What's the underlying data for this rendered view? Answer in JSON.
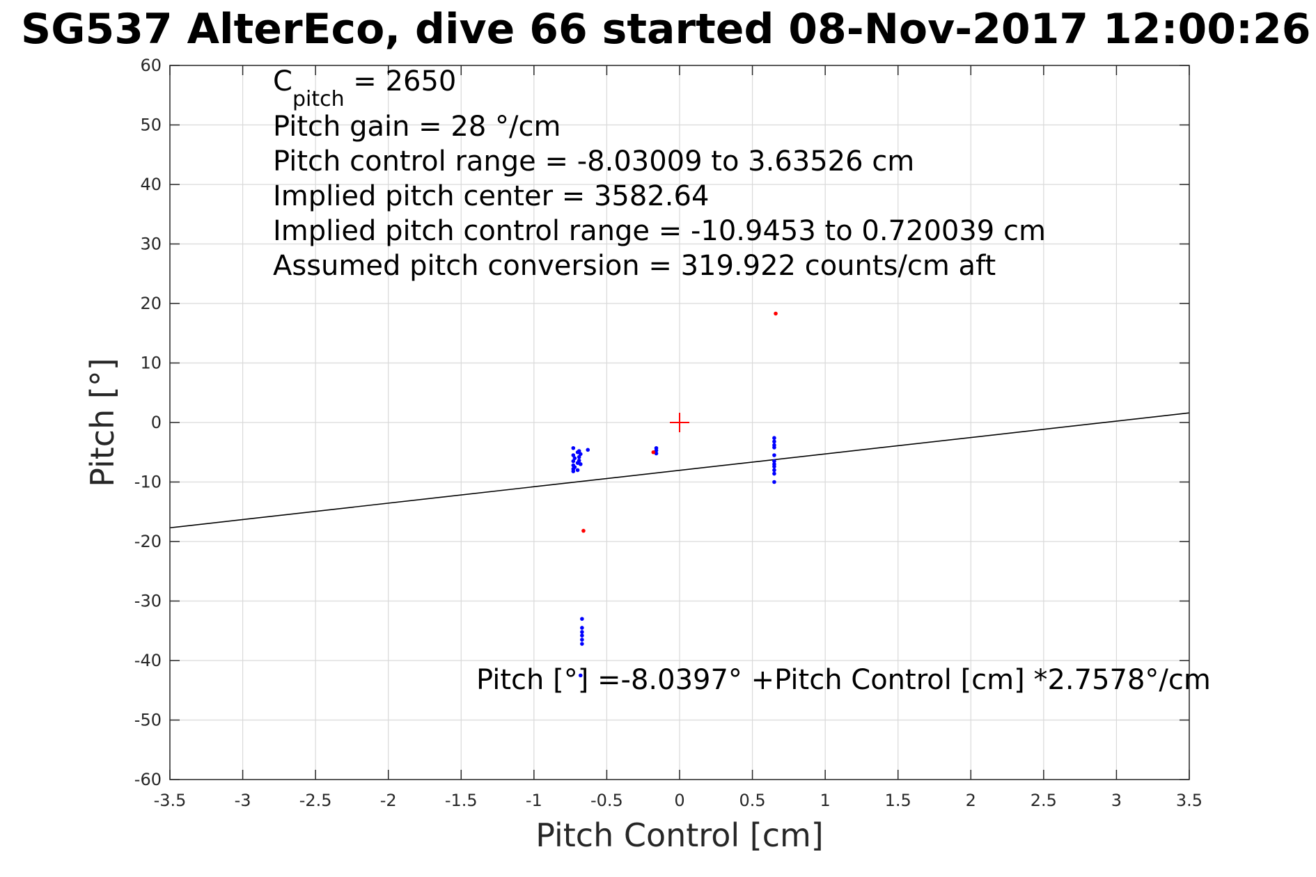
{
  "chart_data": {
    "type": "scatter",
    "title": "SG537 AlterEco, dive 66 started 08-Nov-2017 12:00:26",
    "xlabel": "Pitch Control [cm]",
    "ylabel": "Pitch [°]",
    "xlim": [
      -3.5,
      3.5
    ],
    "ylim": [
      -60,
      60
    ],
    "xticks": [
      -3.5,
      -3,
      -2.5,
      -2,
      -1.5,
      -1,
      -0.5,
      0,
      0.5,
      1,
      1.5,
      2,
      2.5,
      3,
      3.5
    ],
    "xtick_labels": [
      "-3.5",
      "-3",
      "-2.5",
      "-2",
      "-1.5",
      "-1",
      "-0.5",
      "0",
      "0.5",
      "1",
      "1.5",
      "2",
      "2.5",
      "3",
      "3.5"
    ],
    "yticks": [
      60,
      50,
      40,
      30,
      20,
      10,
      0,
      -10,
      -20,
      -30,
      -40,
      -50,
      -60
    ],
    "ytick_labels": [
      "60",
      "50",
      "40",
      "30",
      "20",
      "10",
      "0",
      "-10",
      "-20",
      "-30",
      "-40",
      "-50",
      "-60"
    ],
    "grid": true,
    "annotations": {
      "cpitch_base": "C",
      "cpitch_sub": "pitch",
      "cpitch_value": " = 2650",
      "lines": [
        "Pitch gain = 28 °/cm",
        "Pitch control range = -8.03009 to 3.63526 cm",
        "Implied pitch center = 3582.64",
        "Implied pitch control range = -10.9453 to 0.720039 cm",
        "Assumed pitch conversion = 319.922 counts/cm aft"
      ],
      "fit_equation": "Pitch [°] =-8.0397° +Pitch Control [cm] *2.7578°/cm"
    },
    "fit_line": {
      "intercept": -8.0397,
      "slope": 2.7578,
      "color": "#000000"
    },
    "center_marker": {
      "x": 0,
      "y": 0,
      "color": "#ff0000"
    },
    "series": [
      {
        "color": "#0000ff",
        "points": [
          [
            -0.73,
            -4.3
          ],
          [
            -0.73,
            -5.5
          ],
          [
            -0.73,
            -6.5
          ],
          [
            -0.73,
            -7.2
          ],
          [
            -0.73,
            -7.8
          ],
          [
            -0.73,
            -8.2
          ],
          [
            -0.72,
            -6.0
          ],
          [
            -0.72,
            -7.5
          ],
          [
            -0.7,
            -5.0
          ],
          [
            -0.7,
            -6.8
          ],
          [
            -0.7,
            -8.0
          ],
          [
            -0.69,
            -4.8
          ],
          [
            -0.69,
            -5.8
          ],
          [
            -0.69,
            -6.4
          ],
          [
            -0.68,
            -5.3
          ],
          [
            -0.68,
            -7.0
          ],
          [
            -0.63,
            -4.6
          ],
          [
            -0.67,
            -33.0
          ],
          [
            -0.67,
            -34.5
          ],
          [
            -0.67,
            -35.2
          ],
          [
            -0.67,
            -35.8
          ],
          [
            -0.67,
            -36.5
          ],
          [
            -0.67,
            -37.2
          ],
          [
            -0.68,
            -42.5
          ],
          [
            -0.16,
            -4.3
          ],
          [
            -0.16,
            -4.7
          ],
          [
            -0.16,
            -5.2
          ],
          [
            0.65,
            -2.6
          ],
          [
            0.65,
            -3.2
          ],
          [
            0.65,
            -3.8
          ],
          [
            0.65,
            -4.2
          ],
          [
            0.65,
            -5.5
          ],
          [
            0.65,
            -6.5
          ],
          [
            0.65,
            -7.0
          ],
          [
            0.65,
            -7.4
          ],
          [
            0.65,
            -8.0
          ],
          [
            0.65,
            -8.6
          ],
          [
            0.65,
            -10.0
          ]
        ]
      },
      {
        "color": "#ff0000",
        "points": [
          [
            0.66,
            18.3
          ],
          [
            -0.66,
            -18.2
          ],
          [
            -0.18,
            -5.0
          ]
        ]
      }
    ]
  }
}
